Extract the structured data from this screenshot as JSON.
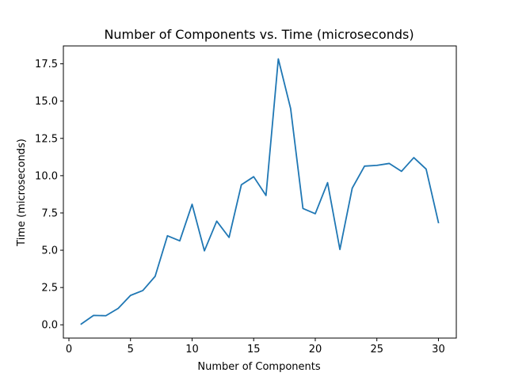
{
  "chart_data": {
    "type": "line",
    "title": "Number of Components vs. Time (microseconds)",
    "xlabel": "Number of Components",
    "ylabel": "Time (microseconds)",
    "xlim": [
      -0.45,
      31.45
    ],
    "ylim": [
      -0.89,
      18.7
    ],
    "xticks": [
      0,
      5,
      10,
      15,
      20,
      25,
      30
    ],
    "xtick_labels": [
      "0",
      "5",
      "10",
      "15",
      "20",
      "25",
      "30"
    ],
    "yticks": [
      0,
      2.5,
      5,
      7.5,
      10,
      12.5,
      15,
      17.5
    ],
    "ytick_labels": [
      "0.0",
      "2.5",
      "5.0",
      "7.5",
      "10.0",
      "12.5",
      "15.0",
      "17.5"
    ],
    "grid": false,
    "line_color": "#1f77b4",
    "series": [
      {
        "x": [
          1,
          2,
          3,
          4,
          5,
          6,
          7,
          8,
          9,
          10,
          11,
          12,
          13,
          14,
          15,
          16,
          17,
          18,
          19,
          20,
          21,
          22,
          23,
          24,
          25,
          26,
          27,
          28,
          29,
          30
        ],
        "values": [
          0.05,
          0.63,
          0.61,
          1.1,
          1.97,
          2.3,
          3.25,
          5.97,
          5.63,
          8.08,
          4.96,
          6.95,
          5.86,
          9.39,
          9.93,
          8.67,
          17.83,
          14.5,
          7.8,
          7.45,
          9.53,
          5.05,
          9.16,
          10.64,
          10.69,
          10.82,
          10.29,
          11.21,
          10.44,
          6.86
        ]
      }
    ]
  }
}
